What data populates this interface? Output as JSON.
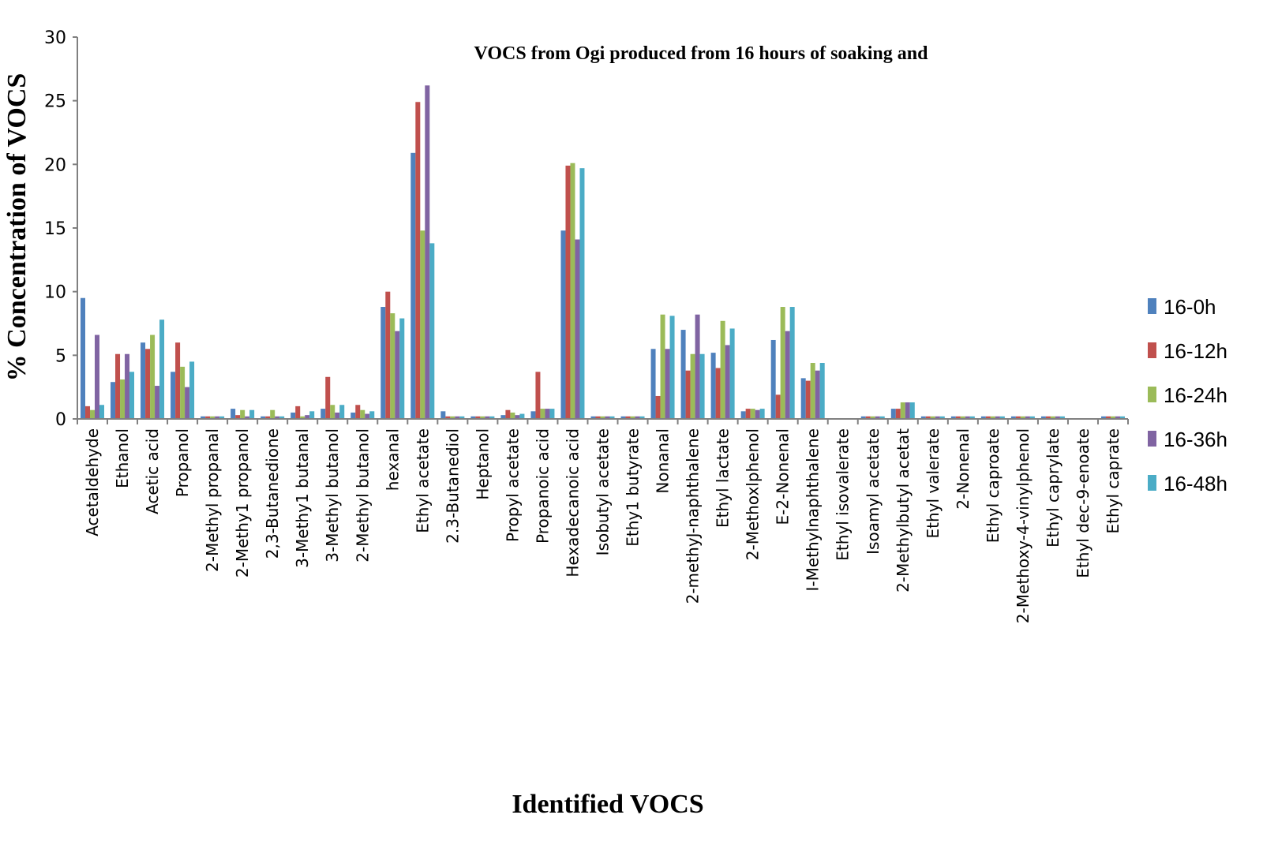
{
  "chart_data": {
    "type": "bar",
    "title": "VOCS  from Ogi produced from 16 hours of soaking and",
    "xlabel": "Identified  VOCS",
    "ylabel": "% Concentration  of VOCS",
    "ylim": [
      0,
      30
    ],
    "yticks": [
      "0",
      "5",
      "10",
      "15",
      "20",
      "25",
      "30"
    ],
    "grid": false,
    "legend_position": "right",
    "categories": [
      "Acetaldehyde",
      "Ethanol",
      "Acetic acid",
      "Propanol",
      "2-Methyl propanal",
      "2-Methy1 propanol",
      "2,3-Butanedione",
      "3-Methy1 butanal",
      "3-Methyl butanol",
      "2-Methyl butanol",
      "hexanal",
      "Ethyl acetate",
      "2.3-Butanediol",
      "Heptanol",
      "Propyl acetate",
      "Propanoic acid",
      "Hexadecanoic acid",
      "Isobutyl acetate",
      "Ethy1 butyrate",
      "Nonanal",
      "2-methyJ-naphthalene",
      "Ethyl lactate",
      "2-Methoxlphenol",
      "E-2-Nonenal",
      "I-Methylnaphthalene",
      "Ethyl isovalerate",
      "Isoamyl acetate",
      "2-Methylbutyl acetat",
      "Ethyl valerate",
      "2-Nonenal",
      "Ethyl caproate",
      "2-Methoxy-4-vinylphenol",
      "Ethyl caprylate",
      "Ethyl dec-9-enoate",
      "Ethyl caprate"
    ],
    "series": [
      {
        "name": "16-0h",
        "color": "#4f81bd",
        "values": [
          9.5,
          2.9,
          6.0,
          3.7,
          0.2,
          0.8,
          0.2,
          0.5,
          0.8,
          0.5,
          8.8,
          20.9,
          0.6,
          0.2,
          0.3,
          0.6,
          14.8,
          0.2,
          0.2,
          5.5,
          7.0,
          5.2,
          0.6,
          6.2,
          3.2,
          0.0,
          0.2,
          0.8,
          0.2,
          0.2,
          0.2,
          0.2,
          0.2,
          0.0,
          0.2
        ]
      },
      {
        "name": "16-12h",
        "color": "#c0504d",
        "values": [
          1.0,
          5.1,
          5.5,
          6.0,
          0.2,
          0.3,
          0.2,
          1.0,
          3.3,
          1.1,
          10.0,
          24.9,
          0.2,
          0.2,
          0.7,
          3.7,
          19.9,
          0.2,
          0.2,
          1.8,
          3.8,
          4.0,
          0.8,
          1.9,
          3.0,
          0.0,
          0.2,
          0.8,
          0.2,
          0.2,
          0.2,
          0.2,
          0.2,
          0.0,
          0.2
        ]
      },
      {
        "name": "16-24h",
        "color": "#9bbb59",
        "values": [
          0.7,
          3.1,
          6.6,
          4.1,
          0.2,
          0.7,
          0.7,
          0.2,
          1.1,
          0.7,
          8.3,
          14.8,
          0.2,
          0.2,
          0.5,
          0.8,
          20.1,
          0.2,
          0.2,
          8.2,
          5.1,
          7.7,
          0.8,
          8.8,
          4.4,
          0.0,
          0.2,
          1.3,
          0.2,
          0.2,
          0.2,
          0.2,
          0.2,
          0.0,
          0.2
        ]
      },
      {
        "name": "16-36h",
        "color": "#8064a2",
        "values": [
          6.6,
          5.1,
          2.6,
          2.5,
          0.2,
          0.2,
          0.2,
          0.3,
          0.5,
          0.4,
          6.9,
          26.2,
          0.2,
          0.2,
          0.3,
          0.8,
          14.1,
          0.2,
          0.2,
          5.5,
          8.2,
          5.8,
          0.7,
          6.9,
          3.8,
          0.0,
          0.2,
          1.3,
          0.2,
          0.2,
          0.2,
          0.2,
          0.2,
          0.0,
          0.2
        ]
      },
      {
        "name": "16-48h",
        "color": "#4bacc6",
        "values": [
          1.1,
          3.7,
          7.8,
          4.5,
          0.2,
          0.7,
          0.2,
          0.6,
          1.1,
          0.6,
          7.9,
          13.8,
          0.2,
          0.2,
          0.4,
          0.8,
          19.7,
          0.2,
          0.2,
          8.1,
          5.1,
          7.1,
          0.8,
          8.8,
          4.4,
          0.0,
          0.2,
          1.3,
          0.2,
          0.2,
          0.2,
          0.2,
          0.2,
          0.0,
          0.2
        ]
      }
    ]
  }
}
